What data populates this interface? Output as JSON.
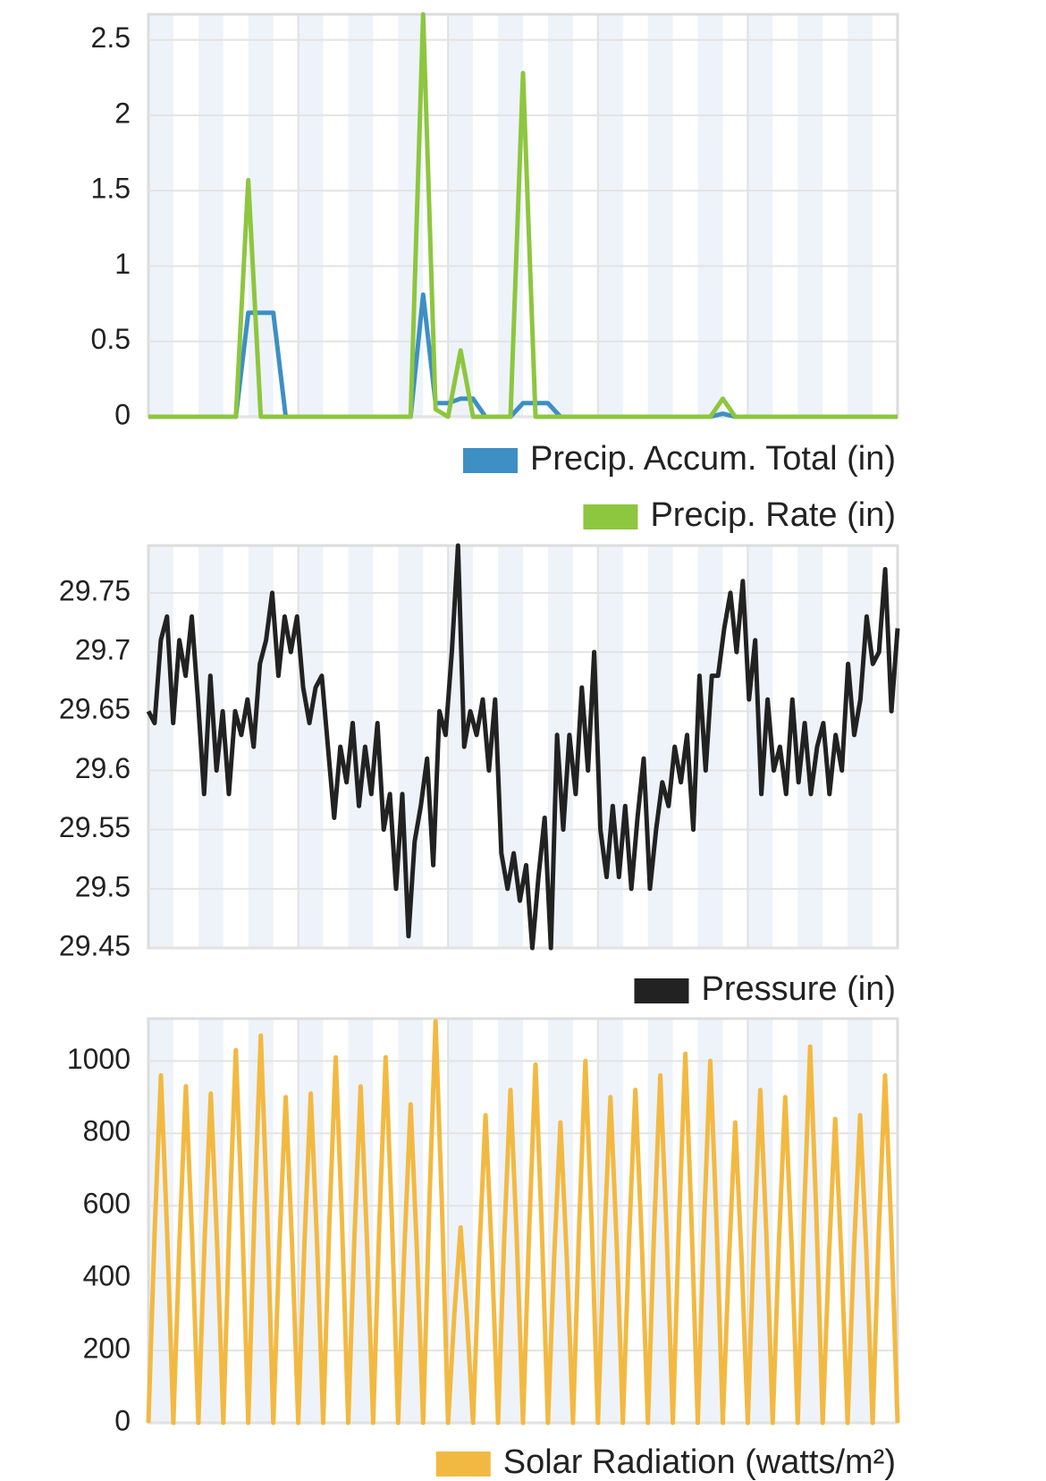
{
  "chart_data": [
    {
      "type": "line",
      "ylim": [
        0,
        2.67
      ],
      "yticks": [
        0,
        0.5,
        1,
        1.5,
        2,
        2.5
      ],
      "grid": true,
      "series": [
        {
          "name": "Precip. Accum. Total (in)",
          "color": "#3d8fc4",
          "values": [
            0,
            0,
            0,
            0,
            0,
            0,
            0,
            0,
            0.69,
            0.69,
            0.69,
            0,
            0,
            0,
            0,
            0,
            0,
            0,
            0,
            0,
            0,
            0,
            0.81,
            0.09,
            0.09,
            0.12,
            0.12,
            0,
            0,
            0,
            0.09,
            0.09,
            0.09,
            0,
            0,
            0,
            0,
            0,
            0,
            0,
            0,
            0,
            0,
            0,
            0,
            0,
            0.02,
            0,
            0,
            0,
            0,
            0,
            0,
            0,
            0,
            0,
            0,
            0,
            0,
            0,
            0
          ]
        },
        {
          "name": "Precip. Rate (in)",
          "color": "#8dc63f",
          "values": [
            0,
            0,
            0,
            0,
            0,
            0,
            0,
            0,
            1.57,
            0,
            0,
            0,
            0,
            0,
            0,
            0,
            0,
            0,
            0,
            0,
            0,
            0,
            2.67,
            0.05,
            0,
            0.44,
            0,
            0,
            0,
            0,
            2.28,
            0,
            0,
            0,
            0,
            0,
            0,
            0,
            0,
            0,
            0,
            0,
            0,
            0,
            0,
            0,
            0.12,
            0,
            0,
            0,
            0,
            0,
            0,
            0,
            0,
            0,
            0,
            0,
            0,
            0,
            0
          ]
        }
      ]
    },
    {
      "type": "line",
      "ylim": [
        29.45,
        29.79
      ],
      "yticks": [
        29.45,
        29.5,
        29.55,
        29.6,
        29.65,
        29.7,
        29.75
      ],
      "grid": true,
      "series": [
        {
          "name": "Pressure (in)",
          "color": "#222222",
          "values": [
            29.65,
            29.64,
            29.71,
            29.73,
            29.64,
            29.71,
            29.68,
            29.73,
            29.66,
            29.58,
            29.68,
            29.6,
            29.65,
            29.58,
            29.65,
            29.63,
            29.66,
            29.62,
            29.69,
            29.71,
            29.75,
            29.68,
            29.73,
            29.7,
            29.73,
            29.67,
            29.64,
            29.67,
            29.68,
            29.62,
            29.56,
            29.62,
            29.59,
            29.64,
            29.57,
            29.62,
            29.58,
            29.64,
            29.55,
            29.58,
            29.5,
            29.58,
            29.46,
            29.54,
            29.57,
            29.61,
            29.52,
            29.65,
            29.63,
            29.7,
            29.79,
            29.62,
            29.65,
            29.63,
            29.66,
            29.6,
            29.66,
            29.53,
            29.5,
            29.53,
            29.49,
            29.52,
            29.45,
            29.51,
            29.56,
            29.45,
            29.63,
            29.55,
            29.63,
            29.58,
            29.67,
            29.6,
            29.7,
            29.55,
            29.51,
            29.57,
            29.51,
            29.57,
            29.5,
            29.56,
            29.61,
            29.5,
            29.55,
            29.59,
            29.57,
            29.62,
            29.59,
            29.63,
            29.55,
            29.68,
            29.6,
            29.68,
            29.68,
            29.72,
            29.75,
            29.7,
            29.76,
            29.66,
            29.71,
            29.58,
            29.66,
            29.6,
            29.62,
            29.58,
            29.66,
            29.59,
            29.64,
            29.58,
            29.62,
            29.64,
            29.58,
            29.63,
            29.6,
            29.69,
            29.63,
            29.66,
            29.73,
            29.69,
            29.7,
            29.77,
            29.65,
            29.72
          ]
        }
      ]
    },
    {
      "type": "line",
      "ylim": [
        0,
        1117
      ],
      "yticks": [
        0,
        200,
        400,
        600,
        800,
        1000
      ],
      "grid": true,
      "series": [
        {
          "name": "Solar Radiation (watts/m²)",
          "color": "#f2b942",
          "values": [
            0,
            530,
            960,
            530,
            0,
            510,
            930,
            510,
            0,
            500,
            910,
            500,
            0,
            570,
            1030,
            570,
            0,
            590,
            1070,
            590,
            0,
            500,
            900,
            500,
            0,
            500,
            910,
            500,
            0,
            560,
            1010,
            560,
            0,
            510,
            930,
            510,
            0,
            560,
            1010,
            560,
            0,
            480,
            880,
            480,
            0,
            610,
            1110,
            610,
            0,
            300,
            540,
            300,
            0,
            470,
            850,
            470,
            0,
            510,
            920,
            510,
            0,
            540,
            990,
            540,
            0,
            460,
            830,
            460,
            0,
            550,
            1000,
            550,
            0,
            500,
            900,
            500,
            0,
            510,
            920,
            510,
            0,
            530,
            960,
            530,
            0,
            560,
            1020,
            560,
            0,
            550,
            1000,
            550,
            0,
            460,
            830,
            460,
            0,
            510,
            920,
            510,
            0,
            500,
            900,
            500,
            0,
            570,
            1040,
            570,
            0,
            460,
            840,
            460,
            0,
            470,
            850,
            470,
            0,
            530,
            960,
            530,
            0
          ]
        }
      ]
    }
  ]
}
